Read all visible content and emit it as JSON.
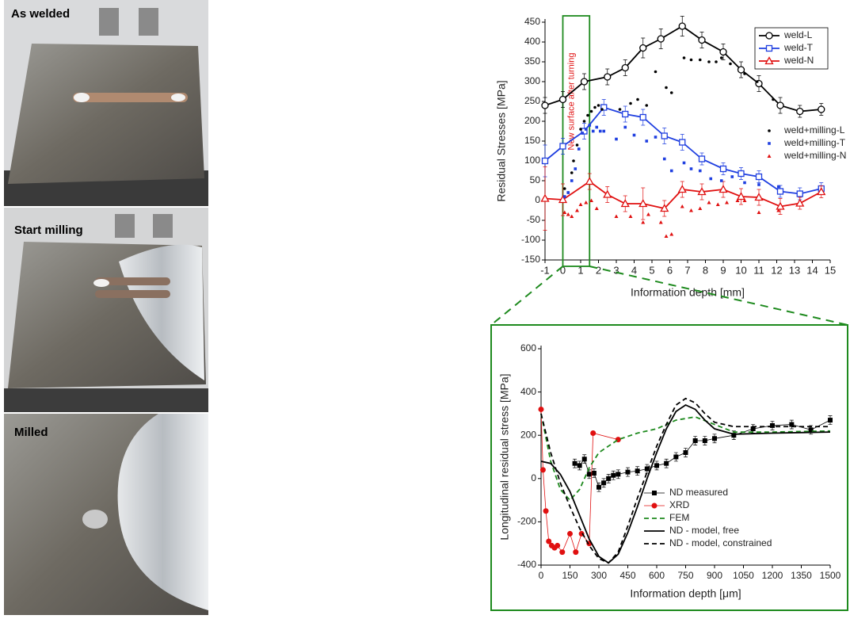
{
  "photos": [
    {
      "label": "As welded"
    },
    {
      "label": "Start milling"
    },
    {
      "label": "Milled"
    }
  ],
  "chart_data": [
    {
      "type": "line",
      "xlabel": "Information depth [mm]",
      "ylabel": "Residual Stresses [MPa]",
      "annotation": "New surface after turning",
      "highlight_x": [
        0,
        1.5
      ],
      "xlim": [
        -1,
        15
      ],
      "xticks": [
        -1,
        0,
        1,
        2,
        3,
        4,
        5,
        6,
        7,
        8,
        9,
        10,
        11,
        12,
        13,
        14,
        15
      ],
      "ylim": [
        -150,
        450
      ],
      "yticks": [
        -150,
        -100,
        -50,
        0,
        50,
        100,
        150,
        200,
        250,
        300,
        350,
        400,
        450
      ],
      "legends": [
        "upper right",
        "center right"
      ],
      "series": [
        {
          "name": "weld-L",
          "color": "#000000",
          "marker": "circle",
          "line": "solid",
          "legend": 0,
          "x": [
            -1,
            0,
            1.2,
            2.5,
            3.5,
            4.5,
            5.5,
            6.7,
            7.8,
            9,
            10,
            11,
            12.2,
            13.3,
            14.5
          ],
          "values": [
            240,
            255,
            300,
            312,
            335,
            385,
            408,
            440,
            405,
            375,
            330,
            295,
            240,
            225,
            230
          ],
          "errors": [
            20,
            20,
            20,
            20,
            20,
            25,
            25,
            25,
            20,
            20,
            20,
            20,
            20,
            15,
            15
          ]
        },
        {
          "name": "weld-T",
          "color": "#1f3fe0",
          "marker": "square",
          "line": "solid",
          "legend": 0,
          "x": [
            -1,
            0,
            1.2,
            2.3,
            3.5,
            4.5,
            5.7,
            6.7,
            7.8,
            9,
            10,
            11,
            12.2,
            13.3,
            14.5
          ],
          "values": [
            100,
            137,
            175,
            235,
            218,
            210,
            163,
            147,
            105,
            80,
            68,
            60,
            23,
            17,
            30
          ],
          "errors": [
            40,
            20,
            20,
            20,
            20,
            20,
            20,
            20,
            15,
            15,
            15,
            15,
            15,
            15,
            15
          ]
        },
        {
          "name": "weld-N",
          "color": "#e01010",
          "marker": "triangle",
          "line": "solid",
          "legend": 0,
          "x": [
            -1,
            0,
            1.5,
            2.5,
            3.5,
            4.5,
            5.7,
            6.7,
            7.8,
            9,
            10,
            11,
            12.2,
            13.3,
            14.5
          ],
          "values": [
            5,
            2,
            48,
            15,
            -8,
            -8,
            -20,
            28,
            22,
            28,
            10,
            8,
            -15,
            -7,
            22
          ],
          "errors": [
            80,
            40,
            20,
            20,
            20,
            40,
            20,
            20,
            20,
            20,
            20,
            20,
            20,
            15,
            15
          ]
        },
        {
          "name": "weld+milling-L",
          "color": "#000000",
          "marker": "dot",
          "line": "none",
          "legend": 1,
          "x": [
            0.1,
            0.3,
            0.5,
            0.6,
            0.8,
            1.0,
            1.2,
            1.4,
            1.6,
            1.8,
            2.0,
            2.2,
            3.2,
            3.8,
            4.2,
            4.7,
            5.2,
            5.8,
            6.1,
            6.8,
            7.2,
            7.7,
            8.2,
            8.6,
            8.9,
            9.4,
            10.2,
            10.9,
            11.8
          ],
          "values": [
            30,
            20,
            70,
            100,
            140,
            180,
            200,
            215,
            225,
            235,
            240,
            230,
            230,
            245,
            255,
            240,
            325,
            285,
            272,
            360,
            355,
            355,
            350,
            350,
            360,
            345,
            320,
            300,
            255
          ]
        },
        {
          "name": "weld+milling-T",
          "color": "#1f3fe0",
          "marker": "dot-square",
          "line": "none",
          "legend": 1,
          "x": [
            0.1,
            0.3,
            0.5,
            0.7,
            0.9,
            1.1,
            1.3,
            1.5,
            1.7,
            1.9,
            2.1,
            2.3,
            3.0,
            3.5,
            4.0,
            4.7,
            5.2,
            5.7,
            6.1,
            6.8,
            7.2,
            7.7,
            8.3,
            8.9,
            9.5,
            10.2,
            11.0,
            12.1
          ],
          "values": [
            10,
            20,
            50,
            80,
            130,
            170,
            180,
            190,
            175,
            185,
            175,
            175,
            155,
            185,
            165,
            150,
            160,
            105,
            75,
            95,
            80,
            75,
            55,
            50,
            60,
            45,
            40,
            35
          ]
        },
        {
          "name": "weld+milling-N",
          "color": "#e01010",
          "marker": "dot-triangle",
          "line": "none",
          "legend": 1,
          "x": [
            0.1,
            0.3,
            0.5,
            0.8,
            1.0,
            1.3,
            1.6,
            1.9,
            3.0,
            3.8,
            4.5,
            4.8,
            5.5,
            5.8,
            6.1,
            6.7,
            7.2,
            7.7,
            8.2,
            8.7,
            9.2,
            9.8,
            10.2,
            11.0,
            12.1
          ],
          "values": [
            -30,
            -35,
            -40,
            -25,
            -10,
            -5,
            0,
            -20,
            -40,
            -40,
            -55,
            -35,
            -55,
            -90,
            -85,
            -15,
            -25,
            -20,
            -5,
            -10,
            -5,
            0,
            0,
            -30,
            -25
          ]
        }
      ]
    },
    {
      "type": "line",
      "xlabel": "Information depth [μm]",
      "ylabel": "Longitudinal residual stress [MPa]",
      "xlim": [
        0,
        1500
      ],
      "xticks": [
        0,
        150,
        300,
        450,
        600,
        750,
        900,
        1050,
        1200,
        1350,
        1500
      ],
      "ylim": [
        -400,
        600
      ],
      "yticks": [
        -400,
        -200,
        0,
        200,
        400,
        600
      ],
      "legends": [
        "lower center"
      ],
      "series": [
        {
          "name": "ND measured",
          "color": "#000000",
          "marker": "fsquare",
          "line": "thin",
          "legend": 0,
          "x": [
            175,
            200,
            225,
            250,
            275,
            300,
            325,
            350,
            375,
            400,
            450,
            500,
            550,
            600,
            650,
            700,
            750,
            800,
            850,
            900,
            1000,
            1100,
            1200,
            1300,
            1400,
            1500
          ],
          "values": [
            70,
            60,
            90,
            20,
            25,
            -40,
            -20,
            0,
            15,
            20,
            30,
            35,
            45,
            60,
            70,
            100,
            120,
            175,
            175,
            185,
            200,
            230,
            245,
            250,
            225,
            270
          ],
          "errors": [
            20,
            20,
            20,
            20,
            20,
            20,
            20,
            20,
            20,
            20,
            20,
            20,
            20,
            20,
            20,
            20,
            20,
            20,
            20,
            20,
            20,
            20,
            20,
            20,
            20,
            20
          ]
        },
        {
          "name": "XRD",
          "color": "#e01010",
          "marker": "fcircle",
          "line": "thin",
          "legend": 0,
          "x": [
            0,
            10,
            25,
            40,
            55,
            70,
            85,
            110,
            150,
            180,
            210,
            250,
            270,
            400
          ],
          "values": [
            320,
            40,
            -150,
            -290,
            -310,
            -320,
            -310,
            -340,
            -255,
            -340,
            -255,
            -300,
            210,
            180
          ]
        },
        {
          "name": "FEM",
          "color": "#1e8a1e",
          "marker": "none",
          "line": "dashed",
          "legend": 0,
          "x": [
            0,
            50,
            100,
            150,
            200,
            250,
            300,
            400,
            500,
            600,
            700,
            800,
            900,
            1000,
            1200,
            1500
          ],
          "values": [
            300,
            80,
            -50,
            -100,
            -50,
            50,
            120,
            180,
            210,
            230,
            270,
            285,
            250,
            215,
            215,
            220
          ]
        },
        {
          "name": "ND - model, free",
          "color": "#000000",
          "marker": "none",
          "line": "solid",
          "legend": 0,
          "x": [
            0,
            50,
            100,
            150,
            200,
            250,
            300,
            350,
            400,
            450,
            500,
            550,
            600,
            650,
            700,
            750,
            800,
            850,
            900,
            1000,
            1200,
            1500
          ],
          "values": [
            80,
            70,
            20,
            -60,
            -170,
            -280,
            -360,
            -390,
            -350,
            -250,
            -130,
            0,
            120,
            230,
            310,
            340,
            320,
            270,
            230,
            205,
            210,
            215
          ]
        },
        {
          "name": "ND - model, constrained",
          "color": "#000000",
          "marker": "none",
          "line": "dashed",
          "legend": 0,
          "x": [
            0,
            50,
            100,
            150,
            200,
            250,
            300,
            350,
            400,
            450,
            500,
            550,
            600,
            650,
            700,
            750,
            800,
            850,
            900,
            1000,
            1200,
            1500
          ],
          "values": [
            300,
            120,
            -20,
            -130,
            -230,
            -310,
            -370,
            -390,
            -340,
            -220,
            -90,
            30,
            150,
            250,
            340,
            370,
            350,
            300,
            260,
            240,
            240,
            240
          ]
        }
      ]
    }
  ]
}
